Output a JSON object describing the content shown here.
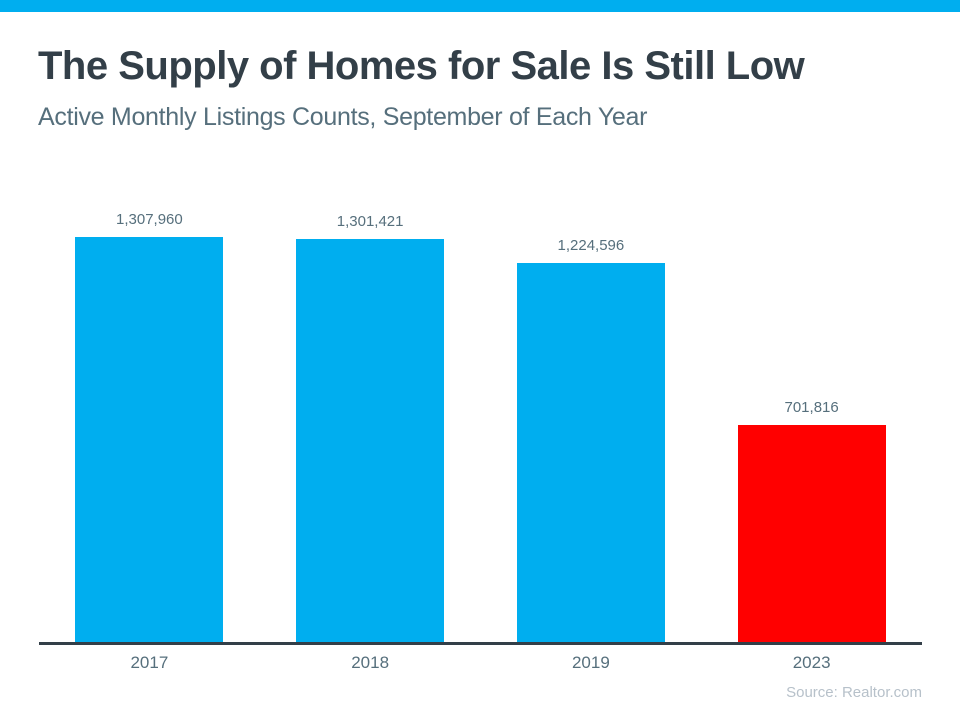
{
  "header": {
    "title": "The Supply of Homes for Sale Is Still Low",
    "subtitle": "Active Monthly Listings Counts, September of Each Year"
  },
  "chart_data": {
    "type": "bar",
    "title": "The Supply of Homes for Sale Is Still Low",
    "subtitle": "Active Monthly Listings Counts, September of Each Year",
    "categories": [
      "2017",
      "2018",
      "2019",
      "2023"
    ],
    "values": [
      1307960,
      1301421,
      1224596,
      701816
    ],
    "value_labels": [
      "1,307,960",
      "1,301,421",
      "1,224,596",
      "701,816"
    ],
    "bar_colors": [
      "#00AEEF",
      "#00AEEF",
      "#00AEEF",
      "#FF0000"
    ],
    "xlabel": "",
    "ylabel": "",
    "ylim": [
      0,
      1400000
    ],
    "grid": false,
    "legend": false,
    "annotations": "value data labels shown above each bar; y-axis hidden"
  },
  "colors": {
    "accent_cyan": "#00AEEF",
    "highlight_red": "#FF0000",
    "title_text": "#333F48",
    "subtitle_text": "#566F7C",
    "label_text": "#566F7C",
    "axis_line": "#333F48",
    "source_text": "#B7C1CA"
  },
  "footer": {
    "source": "Source: Realtor.com"
  }
}
